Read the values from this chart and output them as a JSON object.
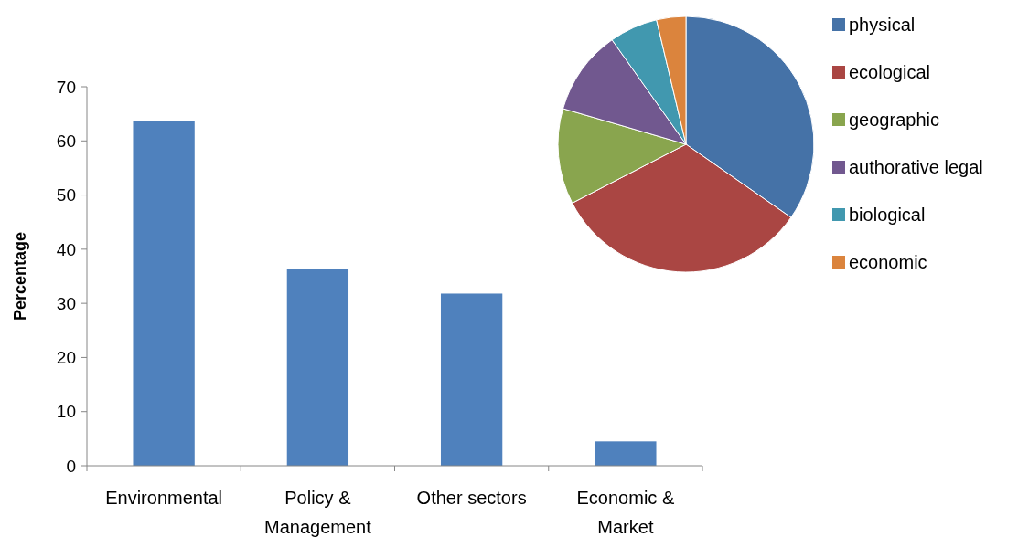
{
  "chart_data": [
    {
      "type": "bar",
      "categories": [
        "Environmental",
        "Policy & Management",
        "Other sectors",
        "Economic & Market"
      ],
      "values": [
        63.6,
        36.4,
        31.8,
        4.5
      ],
      "color": "#4f81bd",
      "ylabel": "Percentage",
      "ylim": [
        0,
        70
      ],
      "yticks": [
        0,
        10,
        20,
        30,
        40,
        50,
        60,
        70
      ]
    },
    {
      "type": "pie",
      "categories": [
        "physical",
        "ecological",
        "geographic",
        "authorative legal",
        "biological",
        "economic"
      ],
      "values": [
        34.7,
        32.7,
        12.1,
        10.7,
        6.1,
        3.7
      ],
      "colors": [
        "#4572a7",
        "#aa4643",
        "#89a54e",
        "#71588f",
        "#4198af",
        "#db843d"
      ],
      "legend": "right"
    }
  ]
}
